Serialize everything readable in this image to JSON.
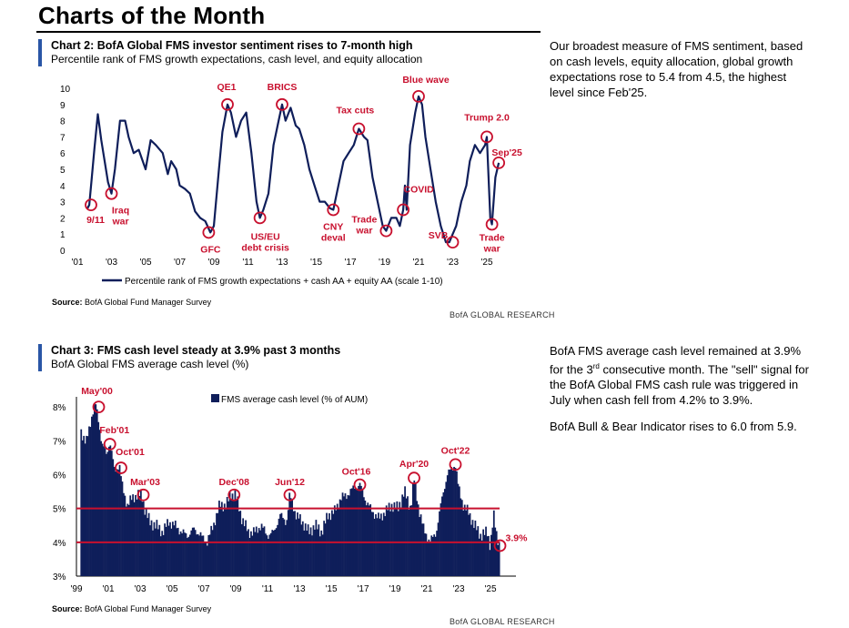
{
  "page": {
    "title": "Charts of the Month",
    "source_label": "Source:",
    "brand": "BofA GLOBAL RESEARCH"
  },
  "chart2": {
    "title": "Chart 2: BofA Global FMS investor sentiment rises to 7-month high",
    "subtitle": "Percentile rank of FMS growth expectations, cash level, and equity allocation",
    "source": "BofA Global Fund Manager Survey",
    "commentary": "Our broadest measure of FMS sentiment, based on cash levels, equity allocation, global growth expectations rose to 5.4 from 4.5, the highest level since Feb'25."
  },
  "chart3": {
    "title": "Chart 3: FMS cash level steady at 3.9% past 3 months",
    "subtitle": "BofA Global FMS average cash level (%)",
    "source": "BofA Global Fund Manager Survey",
    "commentary_1a": "BofA FMS average cash level remained at 3.9% for the 3",
    "commentary_1_sup": "rd",
    "commentary_1b": " consecutive month. The \"sell\" signal for the BofA Global FMS cash rule was triggered in July when cash fell from 4.2% to 3.9%.",
    "commentary_2": "BofA Bull & Bear Indicator rises to 6.0 from 5.9."
  },
  "colors": {
    "series": "#0f1e5a",
    "annotation": "#c8102e",
    "accent": "#2a56a6"
  },
  "chart_data": [
    {
      "type": "line",
      "title": "Chart 2: BofA Global FMS investor sentiment rises to 7-month high",
      "subtitle": "Percentile rank of FMS growth expectations, cash level, and equity allocation",
      "xlim": [
        2001,
        2026.6
      ],
      "ylim": [
        0,
        10
      ],
      "x_ticks": [
        2001,
        2003,
        2005,
        2007,
        2009,
        2011,
        2013,
        2015,
        2017,
        2019,
        2021,
        2023,
        2025
      ],
      "x_tick_labels": [
        "'01",
        "'03",
        "'05",
        "'07",
        "'09",
        "'11",
        "'13",
        "'15",
        "'17",
        "'19",
        "'21",
        "'23",
        "'25"
      ],
      "y_ticks": [
        0,
        1,
        2,
        3,
        4,
        5,
        6,
        7,
        8,
        9,
        10
      ],
      "y_tick_labels": [
        "0",
        "1",
        "2",
        "3",
        "4",
        "5",
        "6",
        "7",
        "8",
        "9",
        "10"
      ],
      "legend": "bottom",
      "series": [
        {
          "name": "Percentile rank of FMS growth expectations + cash AA + equity AA (scale 1-10)",
          "x": [
            2001.6,
            2001.7,
            2001.85,
            2002.0,
            2002.2,
            2002.4,
            2002.6,
            2002.8,
            2003.0,
            2003.2,
            2003.5,
            2003.8,
            2004.0,
            2004.3,
            2004.6,
            2005.0,
            2005.3,
            2005.6,
            2006.0,
            2006.3,
            2006.5,
            2006.8,
            2007.0,
            2007.3,
            2007.6,
            2007.9,
            2008.2,
            2008.5,
            2008.8,
            2009.0,
            2009.3,
            2009.5,
            2009.8,
            2010.0,
            2010.3,
            2010.6,
            2010.9,
            2011.2,
            2011.5,
            2011.7,
            2011.9,
            2012.2,
            2012.5,
            2012.8,
            2013.0,
            2013.2,
            2013.5,
            2013.8,
            2014.0,
            2014.3,
            2014.6,
            2014.9,
            2015.2,
            2015.5,
            2015.8,
            2016.0,
            2016.3,
            2016.6,
            2016.9,
            2017.2,
            2017.5,
            2017.8,
            2018.0,
            2018.3,
            2018.6,
            2018.9,
            2019.1,
            2019.4,
            2019.7,
            2019.9,
            2020.1,
            2020.2,
            2020.3,
            2020.5,
            2020.8,
            2021.0,
            2021.2,
            2021.4,
            2021.7,
            2022.0,
            2022.3,
            2022.6,
            2022.8,
            2023.0,
            2023.2,
            2023.5,
            2023.8,
            2024.0,
            2024.3,
            2024.6,
            2024.9,
            2025.0,
            2025.1,
            2025.2,
            2025.3,
            2025.5,
            2025.7
          ],
          "values": [
            2.6,
            2.8,
            4.5,
            6.3,
            8.4,
            6.8,
            5.5,
            4.2,
            3.5,
            5.0,
            8.0,
            8.0,
            7.0,
            6.0,
            6.2,
            5.0,
            6.8,
            6.5,
            6.0,
            4.7,
            5.5,
            5.0,
            4.0,
            3.8,
            3.5,
            2.4,
            2.0,
            1.8,
            1.1,
            1.5,
            5.0,
            7.3,
            9.0,
            8.5,
            7.0,
            8.0,
            8.5,
            6.0,
            3.0,
            2.0,
            2.5,
            3.5,
            6.5,
            8.0,
            9.0,
            8.0,
            8.8,
            7.7,
            7.5,
            6.5,
            5.0,
            4.0,
            3.0,
            3.0,
            2.6,
            2.5,
            4.0,
            5.5,
            6.0,
            6.5,
            7.5,
            7.0,
            6.8,
            4.5,
            3.0,
            1.5,
            1.2,
            2.0,
            2.0,
            1.5,
            2.5,
            4.0,
            2.5,
            6.5,
            8.5,
            9.5,
            9.0,
            7.0,
            5.0,
            3.0,
            1.5,
            0.5,
            0.5,
            1.0,
            1.5,
            3.0,
            4.0,
            5.5,
            6.5,
            6.0,
            6.5,
            7.0,
            4.5,
            2.0,
            1.6,
            4.5,
            5.4
          ]
        }
      ],
      "annotations": [
        {
          "label": "9/11",
          "x": 2001.8,
          "y": 2.8
        },
        {
          "label": "Iraq war",
          "x": 2003.0,
          "y": 3.5
        },
        {
          "label": "GFC",
          "x": 2008.7,
          "y": 1.1
        },
        {
          "label": "QE1",
          "x": 2009.8,
          "y": 9.0
        },
        {
          "label": "US/EU debt crisis",
          "x": 2011.7,
          "y": 2.0
        },
        {
          "label": "BRICS",
          "x": 2013.0,
          "y": 9.0
        },
        {
          "label": "CNY deval",
          "x": 2016.0,
          "y": 2.5
        },
        {
          "label": "Tax cuts",
          "x": 2017.5,
          "y": 7.5
        },
        {
          "label": "Trade war",
          "x": 2019.1,
          "y": 1.2
        },
        {
          "label": "COVID",
          "x": 2020.1,
          "y": 2.5
        },
        {
          "label": "Blue wave",
          "x": 2021.0,
          "y": 9.5
        },
        {
          "label": "SVB",
          "x": 2023.0,
          "y": 0.5
        },
        {
          "label": "Trump 2.0",
          "x": 2025.0,
          "y": 7.0
        },
        {
          "label": "Trade war",
          "x": 2025.3,
          "y": 1.6
        },
        {
          "label": "Sep'25",
          "x": 2025.7,
          "y": 5.4
        }
      ]
    },
    {
      "type": "bar",
      "title": "Chart 3: FMS cash level steady at 3.9% past 3 months",
      "subtitle": "BofA Global FMS average cash level (%)",
      "xlim": [
        1999,
        2026.6
      ],
      "ylim": [
        3,
        8.3
      ],
      "x_ticks": [
        1999,
        2001,
        2003,
        2005,
        2007,
        2009,
        2011,
        2013,
        2015,
        2017,
        2019,
        2021,
        2023,
        2025
      ],
      "x_tick_labels": [
        "'99",
        "'01",
        "'03",
        "'05",
        "'07",
        "'09",
        "'11",
        "'13",
        "'15",
        "'17",
        "'19",
        "'21",
        "'23",
        "'25"
      ],
      "y_ticks": [
        3,
        4,
        5,
        6,
        7,
        8
      ],
      "y_tick_labels": [
        "3%",
        "4%",
        "5%",
        "6%",
        "7%",
        "8%"
      ],
      "legend": "top",
      "reference_lines": [
        5.0,
        4.0
      ],
      "series": [
        {
          "name": "FMS average cash level (% of AUM)",
          "x": [
            1999.3,
            1999.6,
            1999.9,
            2000.2,
            2000.4,
            2000.6,
            2000.9,
            2001.1,
            2001.4,
            2001.7,
            2001.9,
            2002.2,
            2002.5,
            2002.8,
            2003.1,
            2003.3,
            2003.6,
            2004.0,
            2004.4,
            2004.8,
            2005.2,
            2005.6,
            2006.0,
            2006.4,
            2006.8,
            2007.2,
            2007.6,
            2008.0,
            2008.4,
            2008.7,
            2009.0,
            2009.4,
            2009.8,
            2010.2,
            2010.6,
            2011.0,
            2011.4,
            2011.8,
            2012.2,
            2012.4,
            2012.8,
            2013.2,
            2013.6,
            2014.0,
            2014.4,
            2014.8,
            2015.2,
            2015.6,
            2016.0,
            2016.4,
            2016.8,
            2017.2,
            2017.6,
            2018.0,
            2018.4,
            2018.8,
            2019.2,
            2019.6,
            2020.0,
            2020.2,
            2020.5,
            2020.8,
            2021.2,
            2021.6,
            2022.0,
            2022.3,
            2022.6,
            2022.8,
            2023.0,
            2023.3,
            2023.6,
            2024.0,
            2024.4,
            2024.8,
            2025.0,
            2025.2,
            2025.4,
            2025.6
          ],
          "values": [
            7.3,
            6.9,
            7.6,
            8.1,
            7.6,
            6.9,
            6.6,
            7.0,
            6.1,
            6.3,
            5.6,
            5.1,
            5.3,
            5.4,
            5.4,
            5.0,
            4.6,
            4.5,
            4.3,
            4.6,
            4.5,
            4.3,
            4.2,
            4.4,
            4.2,
            4.0,
            4.5,
            5.1,
            5.1,
            5.4,
            5.4,
            4.7,
            4.3,
            4.3,
            4.5,
            4.2,
            4.3,
            4.8,
            4.6,
            5.4,
            4.8,
            4.6,
            4.3,
            4.5,
            4.3,
            4.8,
            4.9,
            5.3,
            5.4,
            5.6,
            5.7,
            5.2,
            4.9,
            4.7,
            4.9,
            5.1,
            5.0,
            5.5,
            5.0,
            5.9,
            5.0,
            4.4,
            4.0,
            4.3,
            5.4,
            6.0,
            6.2,
            6.3,
            5.6,
            5.1,
            4.9,
            4.5,
            4.2,
            4.3,
            3.9,
            4.8,
            4.2,
            3.9
          ]
        }
      ],
      "annotations": [
        {
          "label": "May'00",
          "x": 2000.4,
          "y": 8.0
        },
        {
          "label": "Feb'01",
          "x": 2001.1,
          "y": 6.9
        },
        {
          "label": "Oct'01",
          "x": 2001.8,
          "y": 6.2
        },
        {
          "label": "Mar'03",
          "x": 2003.2,
          "y": 5.4
        },
        {
          "label": "Dec'08",
          "x": 2008.9,
          "y": 5.4
        },
        {
          "label": "Jun'12",
          "x": 2012.4,
          "y": 5.4
        },
        {
          "label": "Oct'16",
          "x": 2016.8,
          "y": 5.7
        },
        {
          "label": "Apr'20",
          "x": 2020.2,
          "y": 5.9
        },
        {
          "label": "Oct'22",
          "x": 2022.8,
          "y": 6.3
        },
        {
          "label": "3.9%",
          "x": 2025.6,
          "y": 3.9
        }
      ]
    }
  ]
}
